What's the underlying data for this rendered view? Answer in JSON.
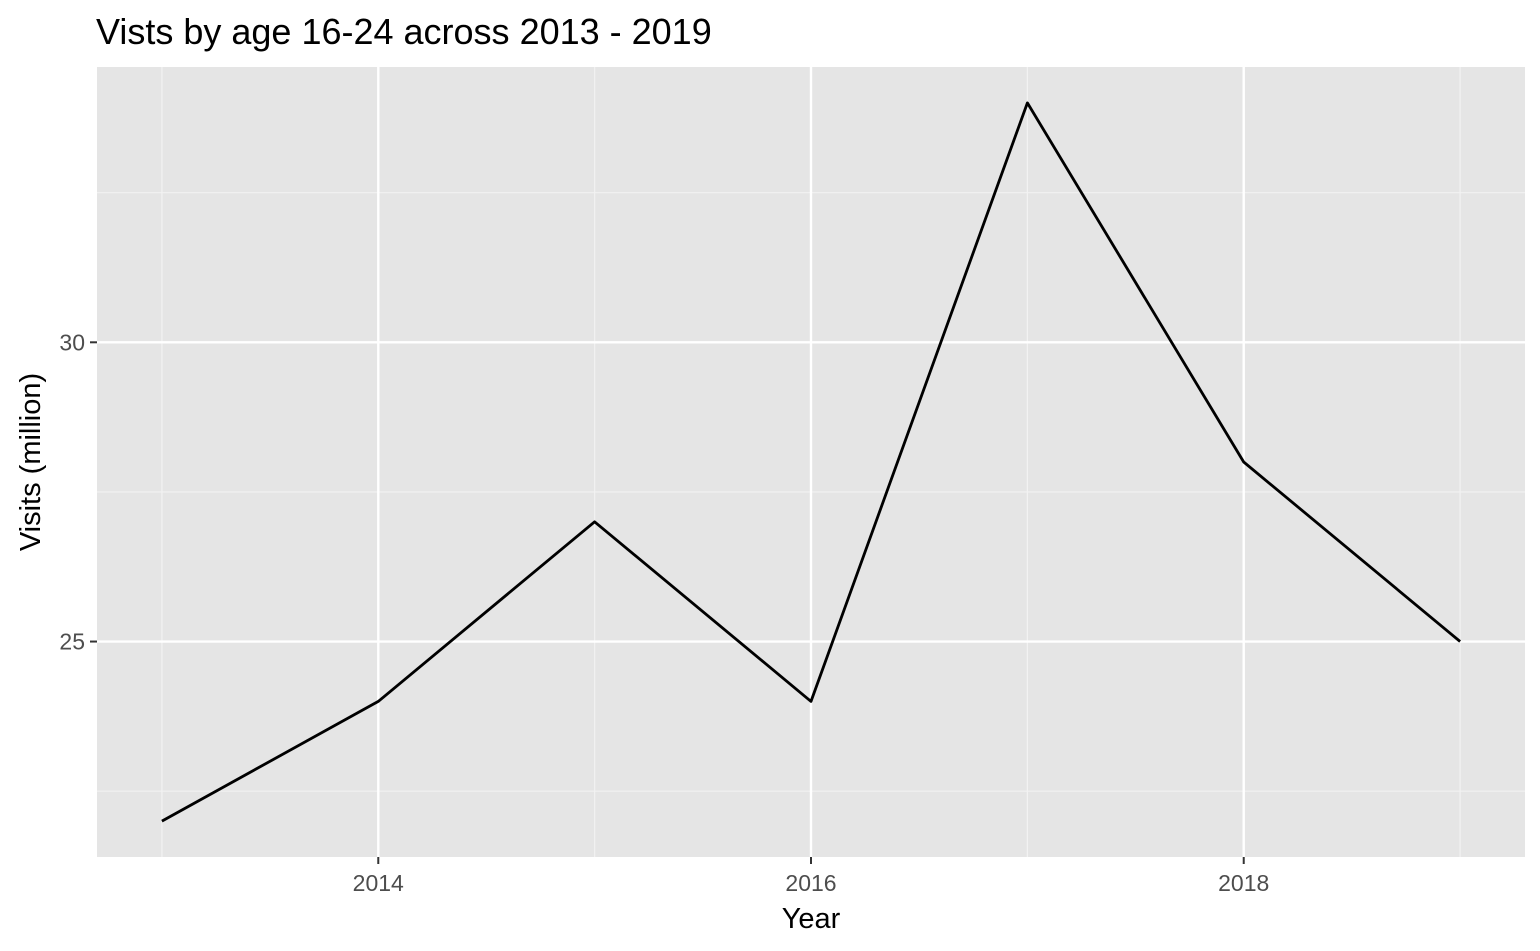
{
  "chart_data": {
    "type": "line",
    "title": "Vists by age 16-24 across 2013 - 2019",
    "xlabel": "Year",
    "ylabel": "Visits (million)",
    "x": [
      2013,
      2014,
      2015,
      2016,
      2017,
      2018,
      2019
    ],
    "series": [
      {
        "values": [
          22,
          24,
          27,
          24,
          34,
          28,
          25
        ]
      }
    ],
    "x_ticks": [
      2014,
      2016,
      2018
    ],
    "x_tick_labels": [
      "2014",
      "2016",
      "2018"
    ],
    "y_ticks": [
      25,
      30
    ],
    "y_tick_labels": [
      "25",
      "30"
    ],
    "xlim": [
      2012.7,
      2019.3
    ],
    "ylim": [
      21.4,
      34.6
    ],
    "grid": true,
    "colors": {
      "panel_background": "#e5e5e5",
      "grid_major": "#ffffff",
      "grid_minor": "#f2f2f2",
      "line": "#000000",
      "tick_mark": "#333333",
      "tick_label": "#4d4d4d"
    }
  }
}
